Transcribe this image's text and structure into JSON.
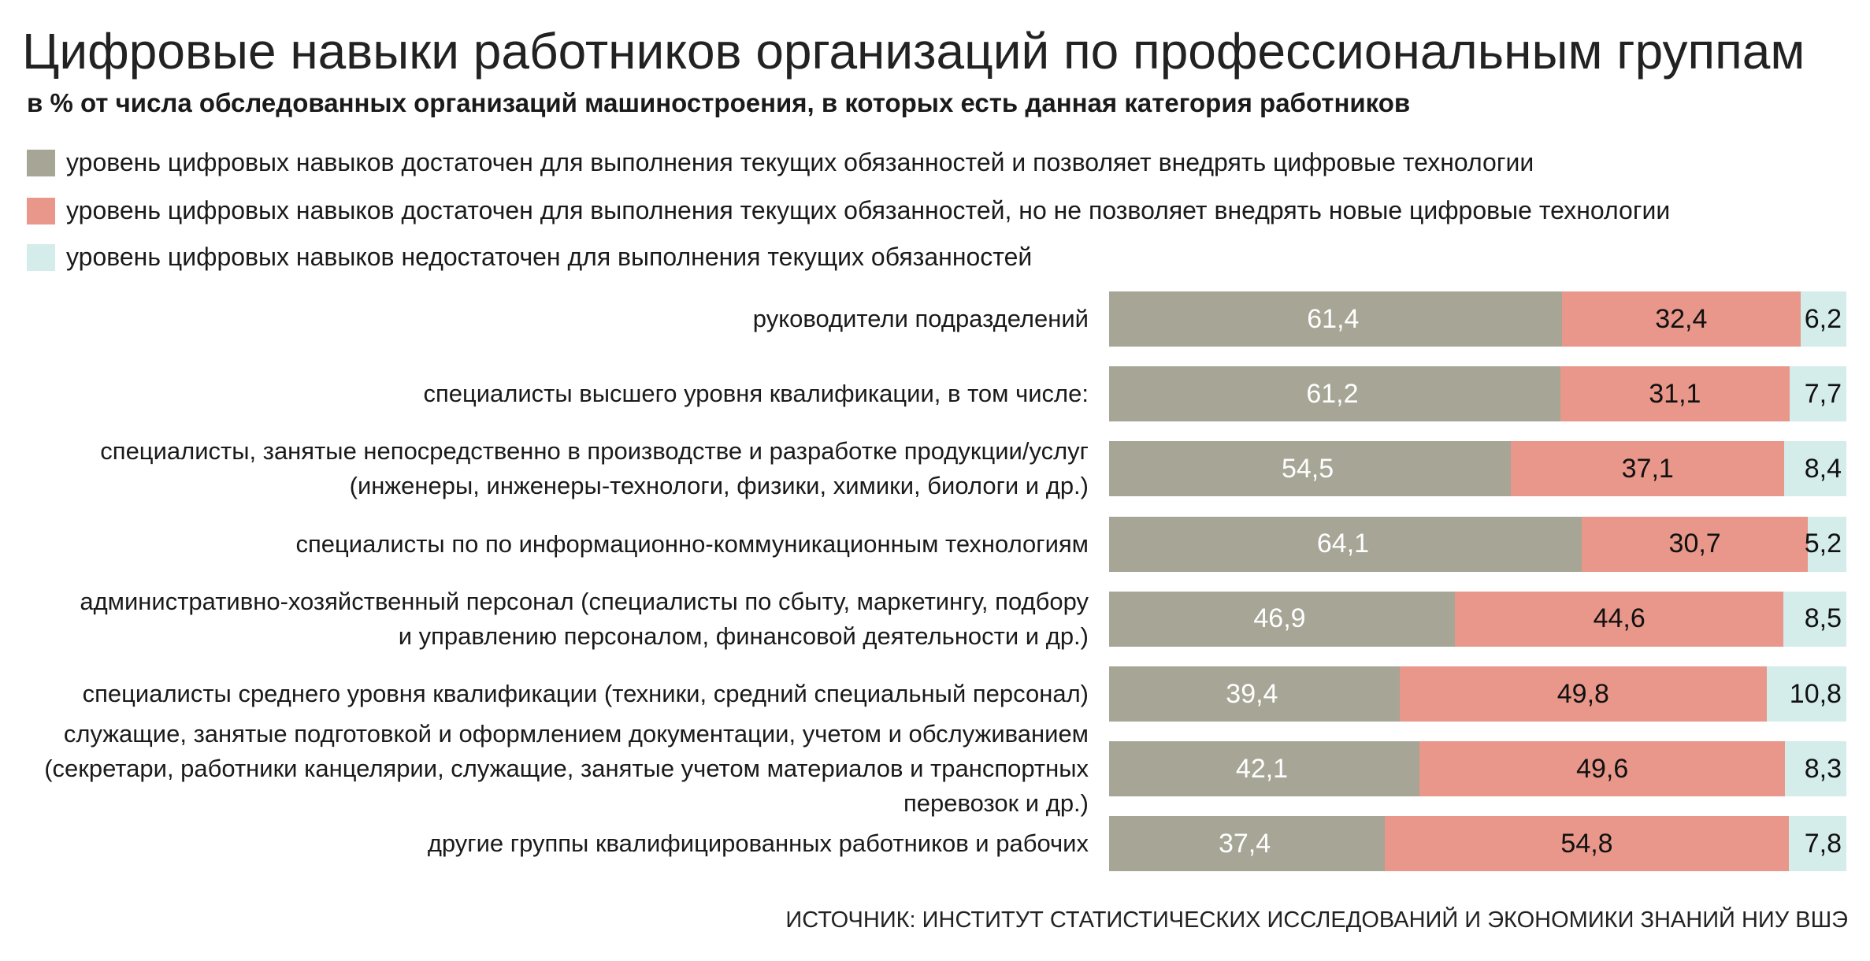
{
  "chart_data": {
    "type": "bar",
    "orientation": "horizontal",
    "stacked": true,
    "title": "Цифровые навыки работников организаций по профессиональным группам",
    "subtitle": "в % от числа обследованных организаций машиностроения, в которых есть данная категория работников",
    "source": "ИСТОЧНИК: ИНСТИТУТ СТАТИСТИЧЕСКИХ ИССЛЕДОВАНИЙ И ЭКОНОМИКИ ЗНАНИЙ НИУ ВШЭ",
    "categories": [
      "руководители подразделений",
      "специалисты высшего уровня квалификации, в том числе:",
      "специалисты, занятые непосредственно в производстве и разработке продукции/услуг\n(инженеры, инженеры-технологи, физики, химики, биологи и др.)",
      "специалисты по по информационно-коммуникационным технологиям",
      "административно-хозяйственный персонал (специалисты по сбыту, маркетингу, подбору\nи управлению персоналом, финансовой деятельности и др.)",
      "специалисты среднего уровня квалификации (техники, средний специальный персонал)",
      "служащие, занятые подготовкой и оформлением документации, учетом и обслуживанием\n(секретари, работники канцелярии, служащие, занятые учетом материалов и транспортных\nперевозок и др.)",
      "другие группы квалифицированных работников и рабочих"
    ],
    "series": [
      {
        "name": "уровень цифровых навыков достаточен для выполнения текущих обязанностей и позволяет внедрять цифровые технологии",
        "color": "#a6a596",
        "values": [
          61.4,
          61.2,
          54.5,
          64.1,
          46.9,
          39.4,
          42.1,
          37.4
        ],
        "value_labels": [
          "61,4",
          "61,2",
          "54,5",
          "64,1",
          "46,9",
          "39,4",
          "42,1",
          "37,4"
        ]
      },
      {
        "name": "уровень цифровых навыков достаточен для выполнения текущих обязанностей, но не позволяет внедрять новые цифровые технологии",
        "color": "#e8978a",
        "values": [
          32.4,
          31.1,
          37.1,
          30.7,
          44.6,
          49.8,
          49.6,
          54.8
        ],
        "value_labels": [
          "32,4",
          "31,1",
          "37,1",
          "30,7",
          "44,6",
          "49,8",
          "49,6",
          "54,8"
        ]
      },
      {
        "name": "уровень цифровых навыков недостаточен для выполнения текущих обязанностей",
        "color": "#d4ecea",
        "values": [
          6.2,
          7.7,
          8.4,
          5.2,
          8.5,
          10.8,
          8.3,
          7.8
        ],
        "value_labels": [
          "6,2",
          "7,7",
          "8,4",
          "5,2",
          "8,5",
          "10,8",
          "8,3",
          "7,8"
        ]
      }
    ],
    "xlim": [
      0,
      100
    ]
  }
}
